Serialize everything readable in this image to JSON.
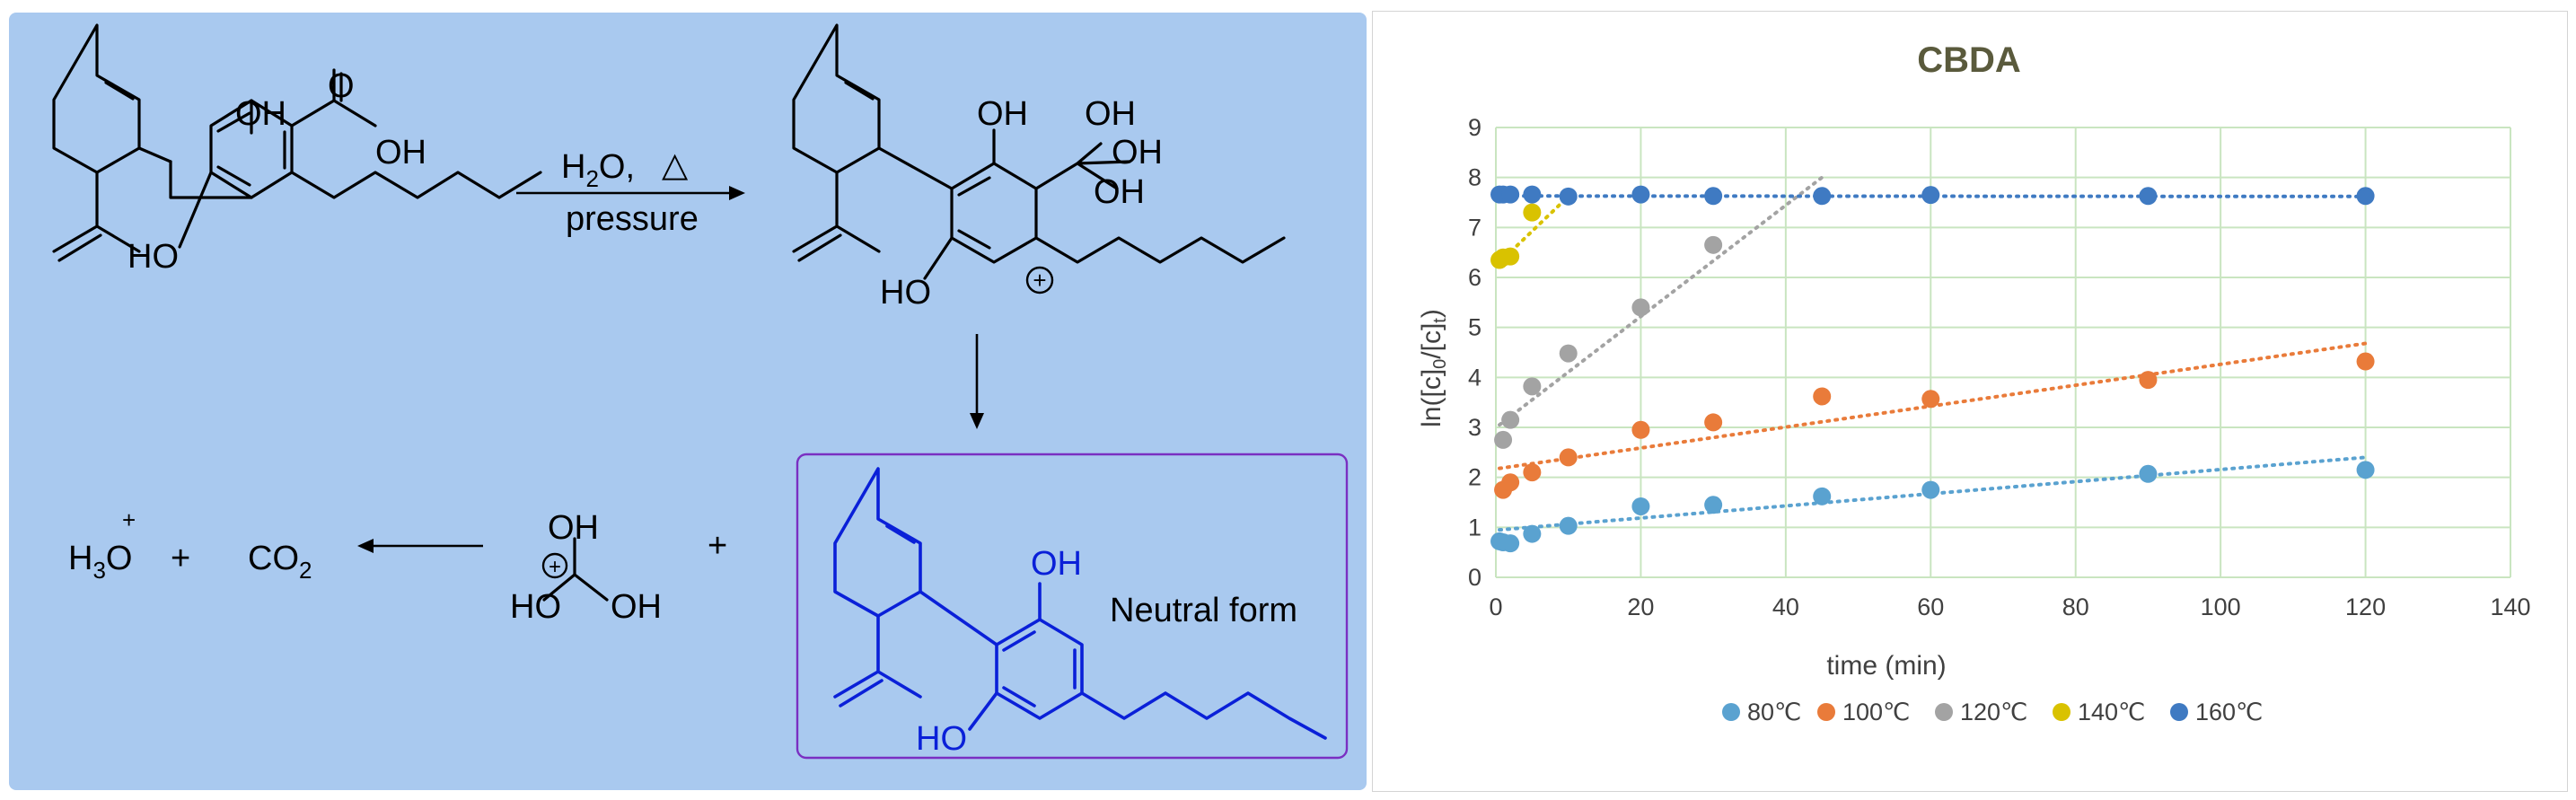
{
  "scheme": {
    "labels": {
      "oh": "OH",
      "ho": "HO",
      "o": "O",
      "h": "H",
      "h2o": "H",
      "h2o_sub": "2",
      "h2o_o": "O,",
      "triangle": "△",
      "pressure": "pressure",
      "h3o_h": "H",
      "h3o_sub": "3",
      "h3o_o": "O",
      "plus_sup": "+",
      "plus": "+",
      "co2_c": "CO",
      "co2_sub": "2",
      "charge": "+",
      "neutral_form": "Neutral form"
    },
    "colors": {
      "panel": "#a9c9ef",
      "neutral": "#0a20d8",
      "frame": "#7a2fc2"
    }
  },
  "chart_data": {
    "type": "scatter",
    "title": "CBDA",
    "xlabel": "time (min)",
    "ylabel_parts": [
      "ln([c]",
      "0",
      "/[c]",
      "t",
      ")"
    ],
    "xlim": [
      0,
      140
    ],
    "ylim": [
      0,
      9
    ],
    "xticks": [
      0,
      20,
      40,
      60,
      80,
      100,
      120,
      140
    ],
    "yticks": [
      0,
      1,
      2,
      3,
      4,
      5,
      6,
      7,
      8,
      9
    ],
    "grid": true,
    "legend_position": "bottom",
    "series": [
      {
        "name": "80℃",
        "color": "#5aa2d0",
        "x": [
          0.5,
          1,
          2,
          5,
          10,
          20,
          30,
          45,
          60,
          90,
          120
        ],
        "y": [
          0.72,
          0.7,
          0.68,
          0.87,
          1.03,
          1.42,
          1.45,
          1.62,
          1.75,
          2.07,
          2.15
        ],
        "trend": [
          [
            0.5,
            0.95
          ],
          [
            120,
            2.4
          ]
        ]
      },
      {
        "name": "100℃",
        "color": "#e97b3a",
        "x": [
          1,
          2,
          5,
          10,
          20,
          30,
          45,
          60,
          90,
          120
        ],
        "y": [
          1.75,
          1.9,
          2.1,
          2.4,
          2.95,
          3.1,
          3.62,
          3.57,
          3.95,
          4.32
        ],
        "trend": [
          [
            0.5,
            2.18
          ],
          [
            120,
            4.68
          ]
        ]
      },
      {
        "name": "120℃",
        "color": "#a3a3a3",
        "x": [
          1,
          2,
          5,
          10,
          20,
          30
        ],
        "y": [
          2.75,
          3.15,
          3.82,
          4.48,
          5.4,
          6.65
        ],
        "trend": [
          [
            0.5,
            3.05
          ],
          [
            45,
            8.0
          ]
        ]
      },
      {
        "name": "140℃",
        "color": "#d9c200",
        "x": [
          0.5,
          1,
          2,
          5
        ],
        "y": [
          6.35,
          6.4,
          6.42,
          7.3
        ],
        "trend": [
          [
            0.5,
            6.3
          ],
          [
            10,
            7.62
          ]
        ]
      },
      {
        "name": "160℃",
        "color": "#3f7ac2",
        "x": [
          0.5,
          1,
          2,
          5,
          10,
          20,
          30,
          45,
          60,
          90,
          120
        ],
        "y": [
          7.66,
          7.66,
          7.66,
          7.66,
          7.62,
          7.66,
          7.63,
          7.63,
          7.65,
          7.63,
          7.63
        ],
        "trend": [
          [
            0.5,
            7.63
          ],
          [
            120,
            7.62
          ]
        ]
      }
    ]
  }
}
